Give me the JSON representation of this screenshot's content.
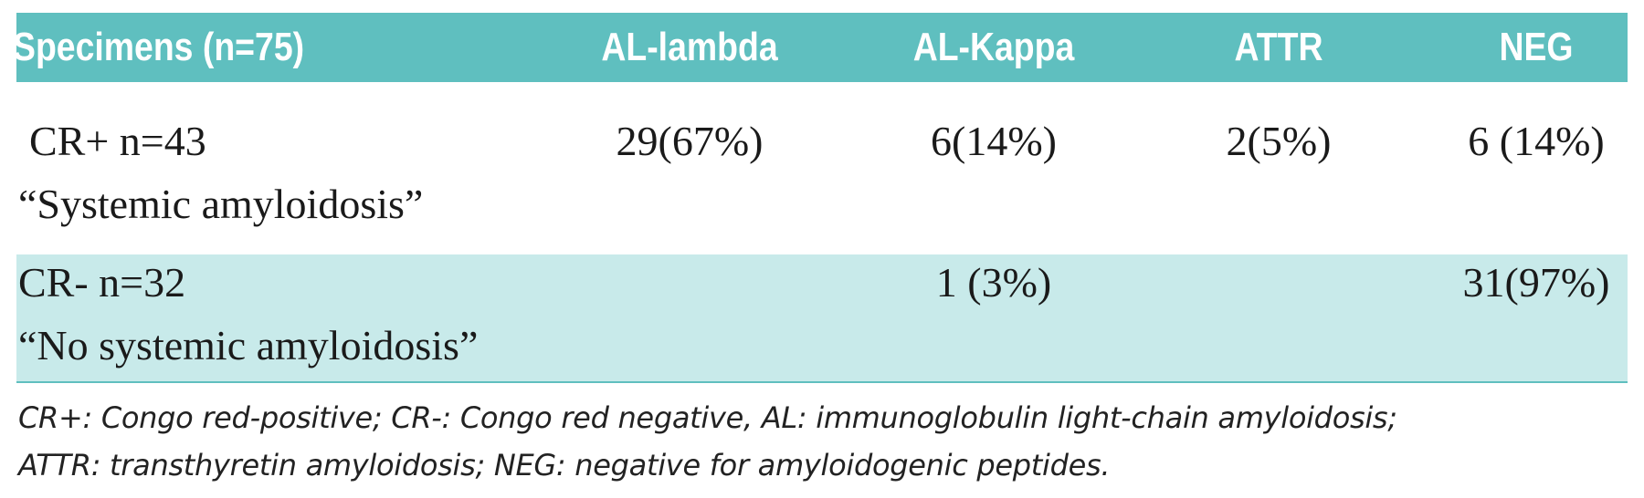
{
  "table": {
    "header": [
      "Specimens (n=75)",
      "AL-lambda",
      "AL-Kappa",
      "ATTR",
      "NEG"
    ],
    "rows": [
      {
        "label": [
          "CR+ n=43",
          "“Systemic amyloidosis”"
        ],
        "cells": [
          "29(67%)",
          "6(14%)",
          "2(5%)",
          "6 (14%)"
        ]
      },
      {
        "label": [
          "CR- n=32",
          "“No systemic amyloidosis”"
        ],
        "cells": [
          null,
          "1 (3%)",
          null,
          "31(97%)"
        ]
      }
    ]
  },
  "footnote": [
    "CR+: Congo red-positive; CR-: Congo red negative, AL: immunoglobulin light-chain amyloidosis;",
    "ATTR: transthyretin amyloidosis; NEG: negative for amyloidogenic peptides."
  ]
}
